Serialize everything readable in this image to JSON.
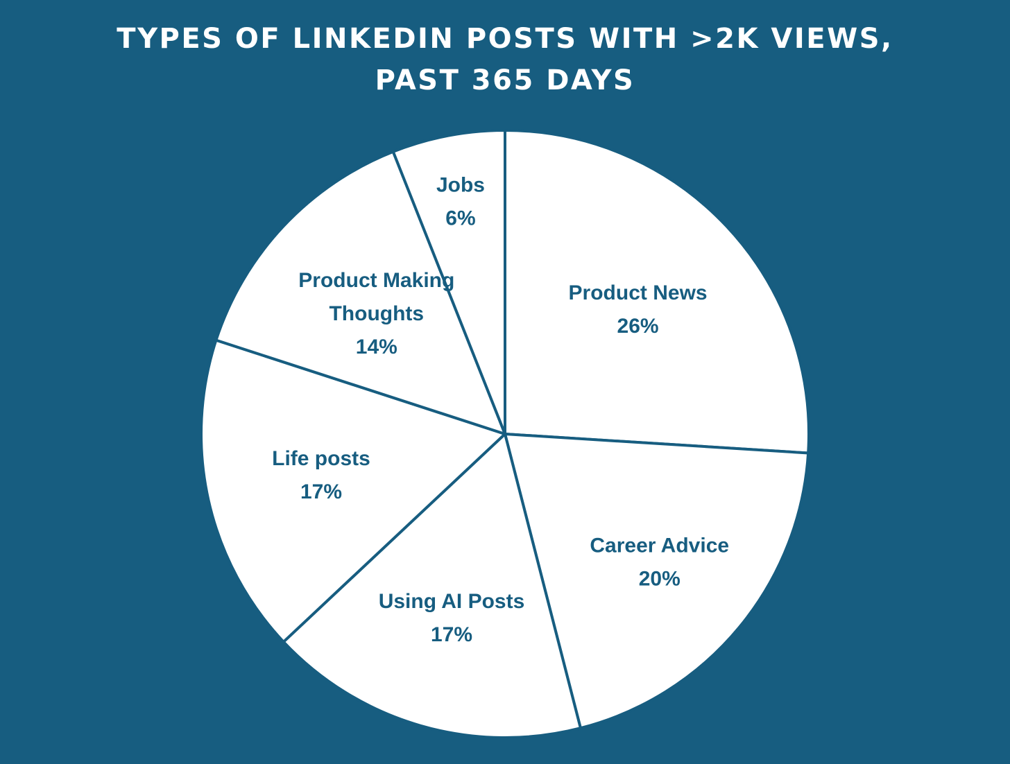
{
  "page": {
    "background": "#175d80",
    "title_line1": "TYPES OF LINKEDIN POSTS WITH >2K VIEWS,",
    "title_line2": "PAST 365 DAYS"
  },
  "chart_data": {
    "type": "pie",
    "title": "TYPES OF LINKEDIN POSTS WITH >2K VIEWS, PAST 365 DAYS",
    "unit": "%",
    "slice_fill": "#ffffff",
    "border_color": "#175d80",
    "label_color": "#175d80",
    "start": "12 o'clock",
    "direction": "clockwise",
    "slices": [
      {
        "label": "Product News",
        "value": 26,
        "value_label": "26%"
      },
      {
        "label": "Career Advice",
        "value": 20,
        "value_label": "20%"
      },
      {
        "label": "Using AI Posts",
        "value": 17,
        "value_label": "17%"
      },
      {
        "label": "Life posts",
        "value": 17,
        "value_label": "17%"
      },
      {
        "label": "Product Making Thoughts",
        "value": 14,
        "value_label": "14%"
      },
      {
        "label": "Jobs",
        "value": 6,
        "value_label": "6%"
      }
    ]
  }
}
